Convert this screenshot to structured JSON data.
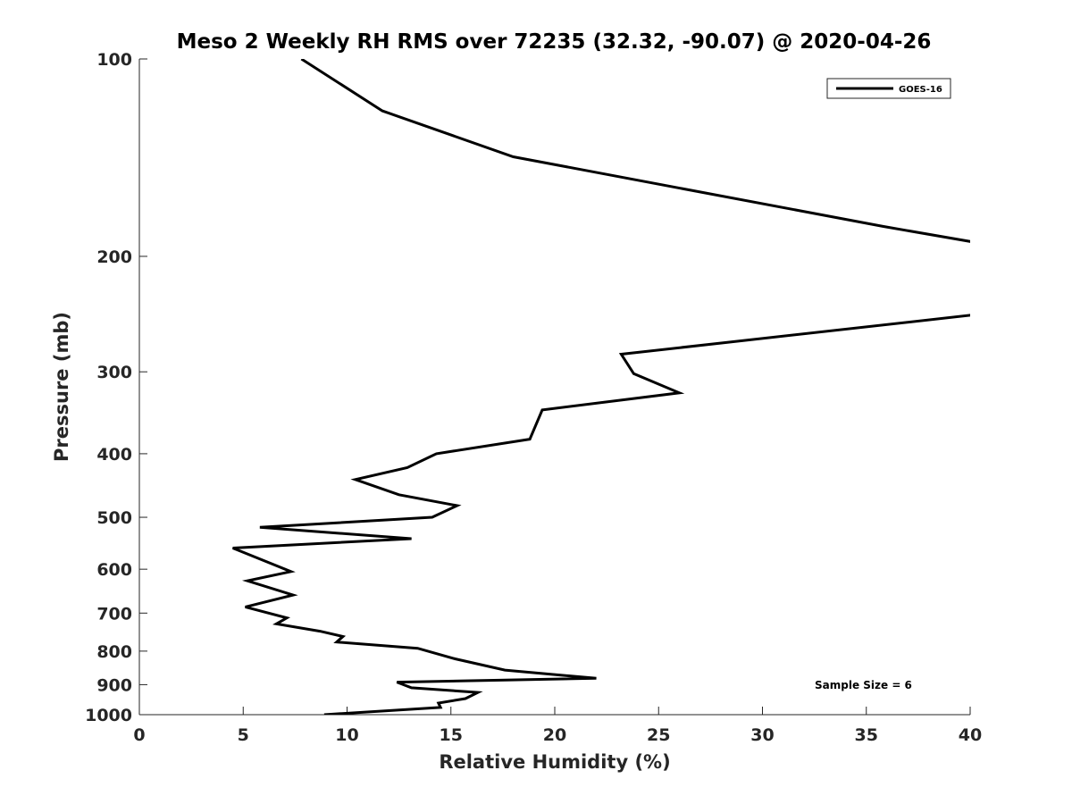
{
  "chart_data": {
    "type": "line",
    "title": "Meso 2 Weekly RH RMS over 72235 (32.32, -90.07) @ 2020-04-26",
    "xlabel": "Relative Humidity (%)",
    "ylabel": "Pressure (mb)",
    "xlim": [
      0,
      40
    ],
    "ylim": [
      100,
      1000
    ],
    "yscale": "log",
    "xticks": [
      0,
      5,
      10,
      15,
      20,
      25,
      30,
      35,
      40
    ],
    "yticks": [
      100,
      200,
      300,
      400,
      500,
      600,
      700,
      800,
      900,
      1000
    ],
    "grid": false,
    "legend_position": "top-right",
    "annotation": "Sample Size = 6",
    "series": [
      {
        "name": "GOES-16",
        "color": "#000000",
        "x": [
          7.8,
          11.7,
          18.0,
          35.8,
          40.5,
          null,
          40.5,
          23.2,
          23.8,
          26.0,
          19.4,
          18.8,
          14.3,
          12.9,
          10.4,
          12.5,
          15.3,
          14.1,
          5.8,
          13.1,
          4.5,
          7.3,
          5.2,
          7.4,
          5.1,
          7.1,
          6.6,
          8.7,
          9.8,
          9.5,
          13.4,
          15.2,
          17.6,
          22.0,
          12.4,
          13.1,
          16.3,
          15.7,
          14.4,
          14.5,
          8.9
        ],
        "y": [
          100,
          120,
          141,
          180,
          191,
          null,
          245,
          282,
          302,
          323,
          343,
          380,
          400,
          420,
          438,
          462,
          480,
          500,
          518,
          539,
          557,
          605,
          625,
          657,
          685,
          712,
          727,
          746,
          760,
          775,
          792,
          822,
          855,
          880,
          892,
          910,
          925,
          945,
          960,
          975,
          1000
        ]
      }
    ]
  }
}
